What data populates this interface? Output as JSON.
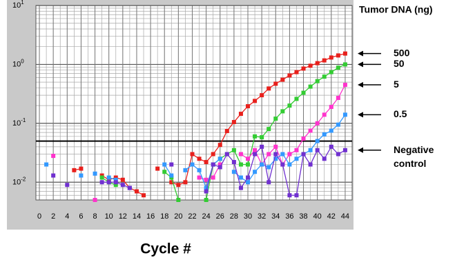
{
  "chart_data": {
    "type": "line",
    "title": "Tumor DNA (ng)",
    "x_label": "Cycle #",
    "log_y": true,
    "grid": true,
    "threshold": 0.05,
    "x": [
      1,
      2,
      3,
      4,
      5,
      6,
      7,
      8,
      9,
      10,
      11,
      12,
      13,
      14,
      15,
      16,
      17,
      18,
      19,
      20,
      21,
      22,
      23,
      24,
      25,
      26,
      27,
      28,
      29,
      30,
      31,
      32,
      33,
      34,
      35,
      36,
      37,
      38,
      39,
      40,
      41,
      42,
      43,
      44
    ],
    "xlim": [
      -0.5,
      45
    ],
    "xticks": [
      0,
      2,
      4,
      6,
      8,
      10,
      12,
      14,
      16,
      18,
      20,
      22,
      24,
      26,
      28,
      30,
      32,
      34,
      36,
      38,
      40,
      42,
      44
    ],
    "ylim": [
      0.005,
      10
    ],
    "yticks": [
      {
        "value": 10,
        "label": "10^1"
      },
      {
        "value": 1,
        "label": "10^0"
      },
      {
        "value": 0.1,
        "label": "10^-1"
      },
      {
        "value": 0.01,
        "label": "10^-2"
      }
    ],
    "series": [
      {
        "name": "500",
        "color": "#e8201c",
        "values": [
          null,
          null,
          null,
          null,
          0.016,
          0.017,
          null,
          null,
          0.013,
          0.011,
          0.012,
          0.011,
          0.008,
          0.007,
          0.006,
          null,
          0.017,
          null,
          0.01,
          0.009,
          0.01,
          0.03,
          0.025,
          0.022,
          0.03,
          0.043,
          0.074,
          0.105,
          0.145,
          0.195,
          0.24,
          0.3,
          0.39,
          0.47,
          0.55,
          0.65,
          0.74,
          0.85,
          0.95,
          1.05,
          1.17,
          1.31,
          1.42,
          1.53
        ]
      },
      {
        "name": "50",
        "color": "#33cc33",
        "values": [
          null,
          null,
          null,
          null,
          null,
          null,
          null,
          null,
          0.012,
          0.01,
          0.009,
          null,
          null,
          null,
          null,
          null,
          null,
          0.015,
          0.012,
          0.005,
          null,
          null,
          null,
          0.005,
          0.02,
          0.025,
          0.03,
          0.035,
          0.02,
          0.02,
          0.06,
          0.058,
          0.08,
          0.12,
          0.16,
          0.2,
          0.26,
          0.33,
          0.42,
          0.52,
          0.62,
          0.74,
          0.88,
          1.0
        ]
      },
      {
        "name": "5",
        "color": "#ff33cc",
        "values": [
          null,
          0.028,
          null,
          null,
          null,
          null,
          null,
          0.005,
          null,
          null,
          null,
          null,
          null,
          null,
          null,
          null,
          null,
          null,
          null,
          null,
          null,
          null,
          0.012,
          0.011,
          0.012,
          0.02,
          null,
          null,
          0.03,
          0.025,
          0.035,
          0.02,
          0.03,
          0.04,
          0.02,
          0.03,
          0.035,
          0.055,
          0.075,
          0.1,
          0.14,
          0.19,
          0.27,
          0.45
        ]
      },
      {
        "name": "0.5",
        "color": "#3399ff",
        "values": [
          0.02,
          null,
          null,
          null,
          null,
          0.013,
          null,
          0.014,
          null,
          0.012,
          0.011,
          null,
          0.008,
          null,
          null,
          null,
          null,
          0.02,
          0.013,
          null,
          0.016,
          0.02,
          0.016,
          0.008,
          0.02,
          0.025,
          null,
          0.015,
          0.012,
          0.01,
          0.015,
          0.02,
          0.018,
          0.025,
          0.03,
          0.02,
          0.025,
          0.03,
          0.035,
          0.05,
          0.065,
          0.075,
          0.095,
          0.14
        ]
      },
      {
        "name": "Negative control",
        "color": "#7030d0",
        "values": [
          null,
          0.013,
          null,
          0.009,
          null,
          null,
          null,
          null,
          0.01,
          0.01,
          0.01,
          0.009,
          0.008,
          null,
          null,
          null,
          null,
          null,
          0.02,
          null,
          null,
          null,
          null,
          0.007,
          0.02,
          0.018,
          0.03,
          0.022,
          0.008,
          0.012,
          0.03,
          0.04,
          0.01,
          0.03,
          0.02,
          0.006,
          0.006,
          0.03,
          0.02,
          0.035,
          0.025,
          0.04,
          0.03,
          0.035
        ]
      }
    ]
  }
}
